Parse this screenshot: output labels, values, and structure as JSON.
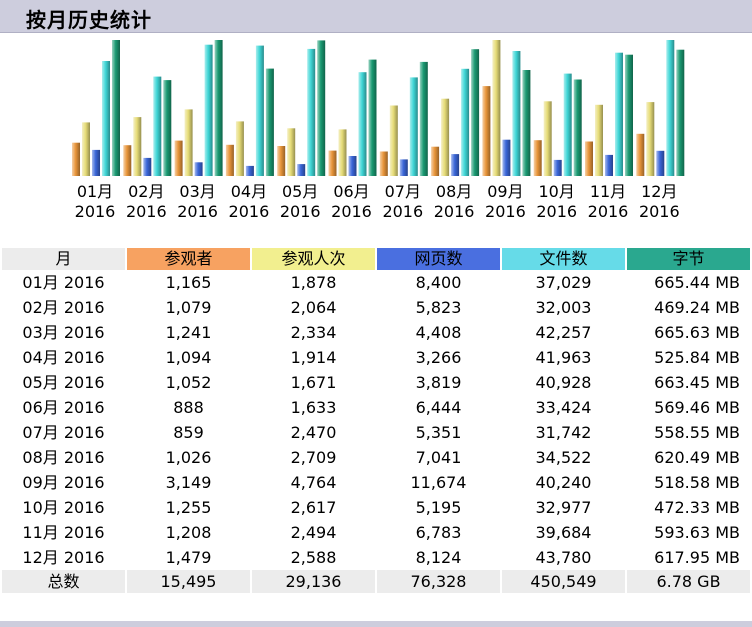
{
  "page": {
    "title": "按月历史统计"
  },
  "colors": {
    "visitors": "#e8953a",
    "visits": "#e6dc78",
    "pages": "#3a66d8",
    "files": "#3fd6d6",
    "bytes": "#1a9a72",
    "header_bg": "#cdcddd"
  },
  "table": {
    "headers": {
      "month": "月",
      "visitors": "参观者",
      "visits": "参观人次",
      "pages": "网页数",
      "files": "文件数",
      "bytes": "字节"
    },
    "rows": [
      {
        "month": "01月 2016",
        "visitors": "1,165",
        "visits": "1,878",
        "pages": "8,400",
        "files": "37,029",
        "bytes": "665.44 MB"
      },
      {
        "month": "02月 2016",
        "visitors": "1,079",
        "visits": "2,064",
        "pages": "5,823",
        "files": "32,003",
        "bytes": "469.24 MB"
      },
      {
        "month": "03月 2016",
        "visitors": "1,241",
        "visits": "2,334",
        "pages": "4,408",
        "files": "42,257",
        "bytes": "665.63 MB"
      },
      {
        "month": "04月 2016",
        "visitors": "1,094",
        "visits": "1,914",
        "pages": "3,266",
        "files": "41,963",
        "bytes": "525.84 MB"
      },
      {
        "month": "05月 2016",
        "visitors": "1,052",
        "visits": "1,671",
        "pages": "3,819",
        "files": "40,928",
        "bytes": "663.45 MB"
      },
      {
        "month": "06月 2016",
        "visitors": "888",
        "visits": "1,633",
        "pages": "6,444",
        "files": "33,424",
        "bytes": "569.46 MB"
      },
      {
        "month": "07月 2016",
        "visitors": "859",
        "visits": "2,470",
        "pages": "5,351",
        "files": "31,742",
        "bytes": "558.55 MB"
      },
      {
        "month": "08月 2016",
        "visitors": "1,026",
        "visits": "2,709",
        "pages": "7,041",
        "files": "34,522",
        "bytes": "620.49 MB"
      },
      {
        "month": "09月 2016",
        "visitors": "3,149",
        "visits": "4,764",
        "pages": "11,674",
        "files": "40,240",
        "bytes": "518.58 MB"
      },
      {
        "month": "10月 2016",
        "visitors": "1,255",
        "visits": "2,617",
        "pages": "5,195",
        "files": "32,977",
        "bytes": "472.33 MB"
      },
      {
        "month": "11月 2016",
        "visitors": "1,208",
        "visits": "2,494",
        "pages": "6,783",
        "files": "39,684",
        "bytes": "593.63 MB"
      },
      {
        "month": "12月 2016",
        "visitors": "1,479",
        "visits": "2,588",
        "pages": "8,124",
        "files": "43,780",
        "bytes": "617.95 MB"
      }
    ],
    "totals": {
      "label": "总数",
      "visitors": "15,495",
      "visits": "29,136",
      "pages": "76,328",
      "files": "450,549",
      "bytes": "6.78 GB"
    }
  },
  "chart_data": {
    "type": "bar",
    "categories": [
      "01月 2016",
      "02月 2016",
      "03月 2016",
      "04月 2016",
      "05月 2016",
      "06月 2016",
      "07月 2016",
      "08月 2016",
      "09月 2016",
      "10月 2016",
      "11月 2016",
      "12月 2016"
    ],
    "category_lines": [
      [
        "01月",
        "2016"
      ],
      [
        "02月",
        "2016"
      ],
      [
        "03月",
        "2016"
      ],
      [
        "04月",
        "2016"
      ],
      [
        "05月",
        "2016"
      ],
      [
        "06月",
        "2016"
      ],
      [
        "07月",
        "2016"
      ],
      [
        "08月",
        "2016"
      ],
      [
        "09月",
        "2016"
      ],
      [
        "10月",
        "2016"
      ],
      [
        "11月",
        "2016"
      ],
      [
        "12月",
        "2016"
      ]
    ],
    "series": [
      {
        "key": "visitors",
        "values": [
          1165,
          1079,
          1241,
          1094,
          1052,
          888,
          859,
          1026,
          3149,
          1255,
          1208,
          1479
        ]
      },
      {
        "key": "visits",
        "values": [
          1878,
          2064,
          2334,
          1914,
          1671,
          1633,
          2470,
          2709,
          4764,
          2617,
          2494,
          2588
        ]
      },
      {
        "key": "pages",
        "values": [
          8400,
          5823,
          4408,
          3266,
          3819,
          6444,
          5351,
          7041,
          11674,
          5195,
          6783,
          8124
        ]
      },
      {
        "key": "files",
        "values": [
          37029,
          32003,
          42257,
          41963,
          40928,
          33424,
          31742,
          34522,
          40240,
          32977,
          39684,
          43780
        ]
      },
      {
        "key": "bytes",
        "values": [
          665.44,
          469.24,
          665.63,
          525.84,
          663.45,
          569.46,
          558.55,
          620.49,
          518.58,
          472.33,
          593.63,
          617.95
        ]
      }
    ],
    "scale_groups": [
      {
        "series": [
          "visitors",
          "visits"
        ],
        "max": 4764
      },
      {
        "series": [
          "pages",
          "files"
        ],
        "max": 43780
      },
      {
        "series": [
          "bytes"
        ],
        "max": 665.63
      }
    ]
  }
}
